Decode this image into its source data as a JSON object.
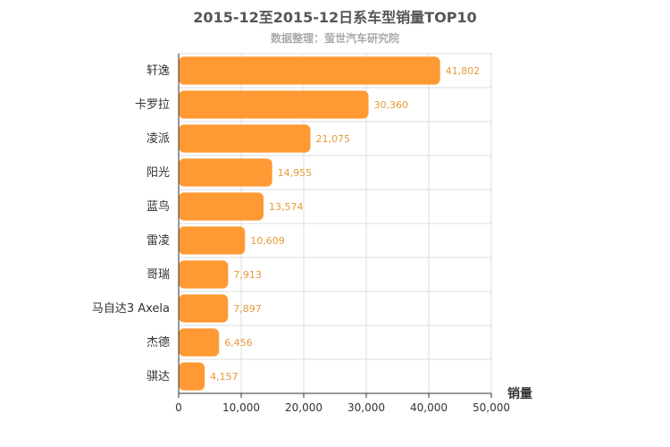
{
  "chart_data": {
    "type": "bar",
    "orientation": "horizontal",
    "title": "2015-12至2015-12日系车型销量TOP10",
    "subtitle": "数据整理：萤世汽车研究院",
    "categories": [
      "轩逸",
      "卡罗拉",
      "凌派",
      "阳光",
      "蓝鸟",
      "雷凌",
      "哥瑞",
      "马自达3 Axela",
      "杰德",
      "骐达"
    ],
    "values": [
      41802,
      30360,
      21075,
      14955,
      13574,
      10609,
      7913,
      7897,
      6456,
      4157
    ],
    "value_labels": [
      "41,802",
      "30,360",
      "21,075",
      "14,955",
      "13,574",
      "10,609",
      "7,913",
      "7,897",
      "6,456",
      "4,157"
    ],
    "xlabel": "销量",
    "ylabel": "",
    "xlim": [
      0,
      50000
    ],
    "x_ticks": [
      0,
      10000,
      20000,
      30000,
      40000,
      50000
    ],
    "x_tick_labels": [
      "0",
      "10,000",
      "20,000",
      "30,000",
      "40,000",
      "50,000"
    ],
    "grid": true,
    "bar_color": "#ff9933",
    "label_color": "#e69a3c"
  }
}
